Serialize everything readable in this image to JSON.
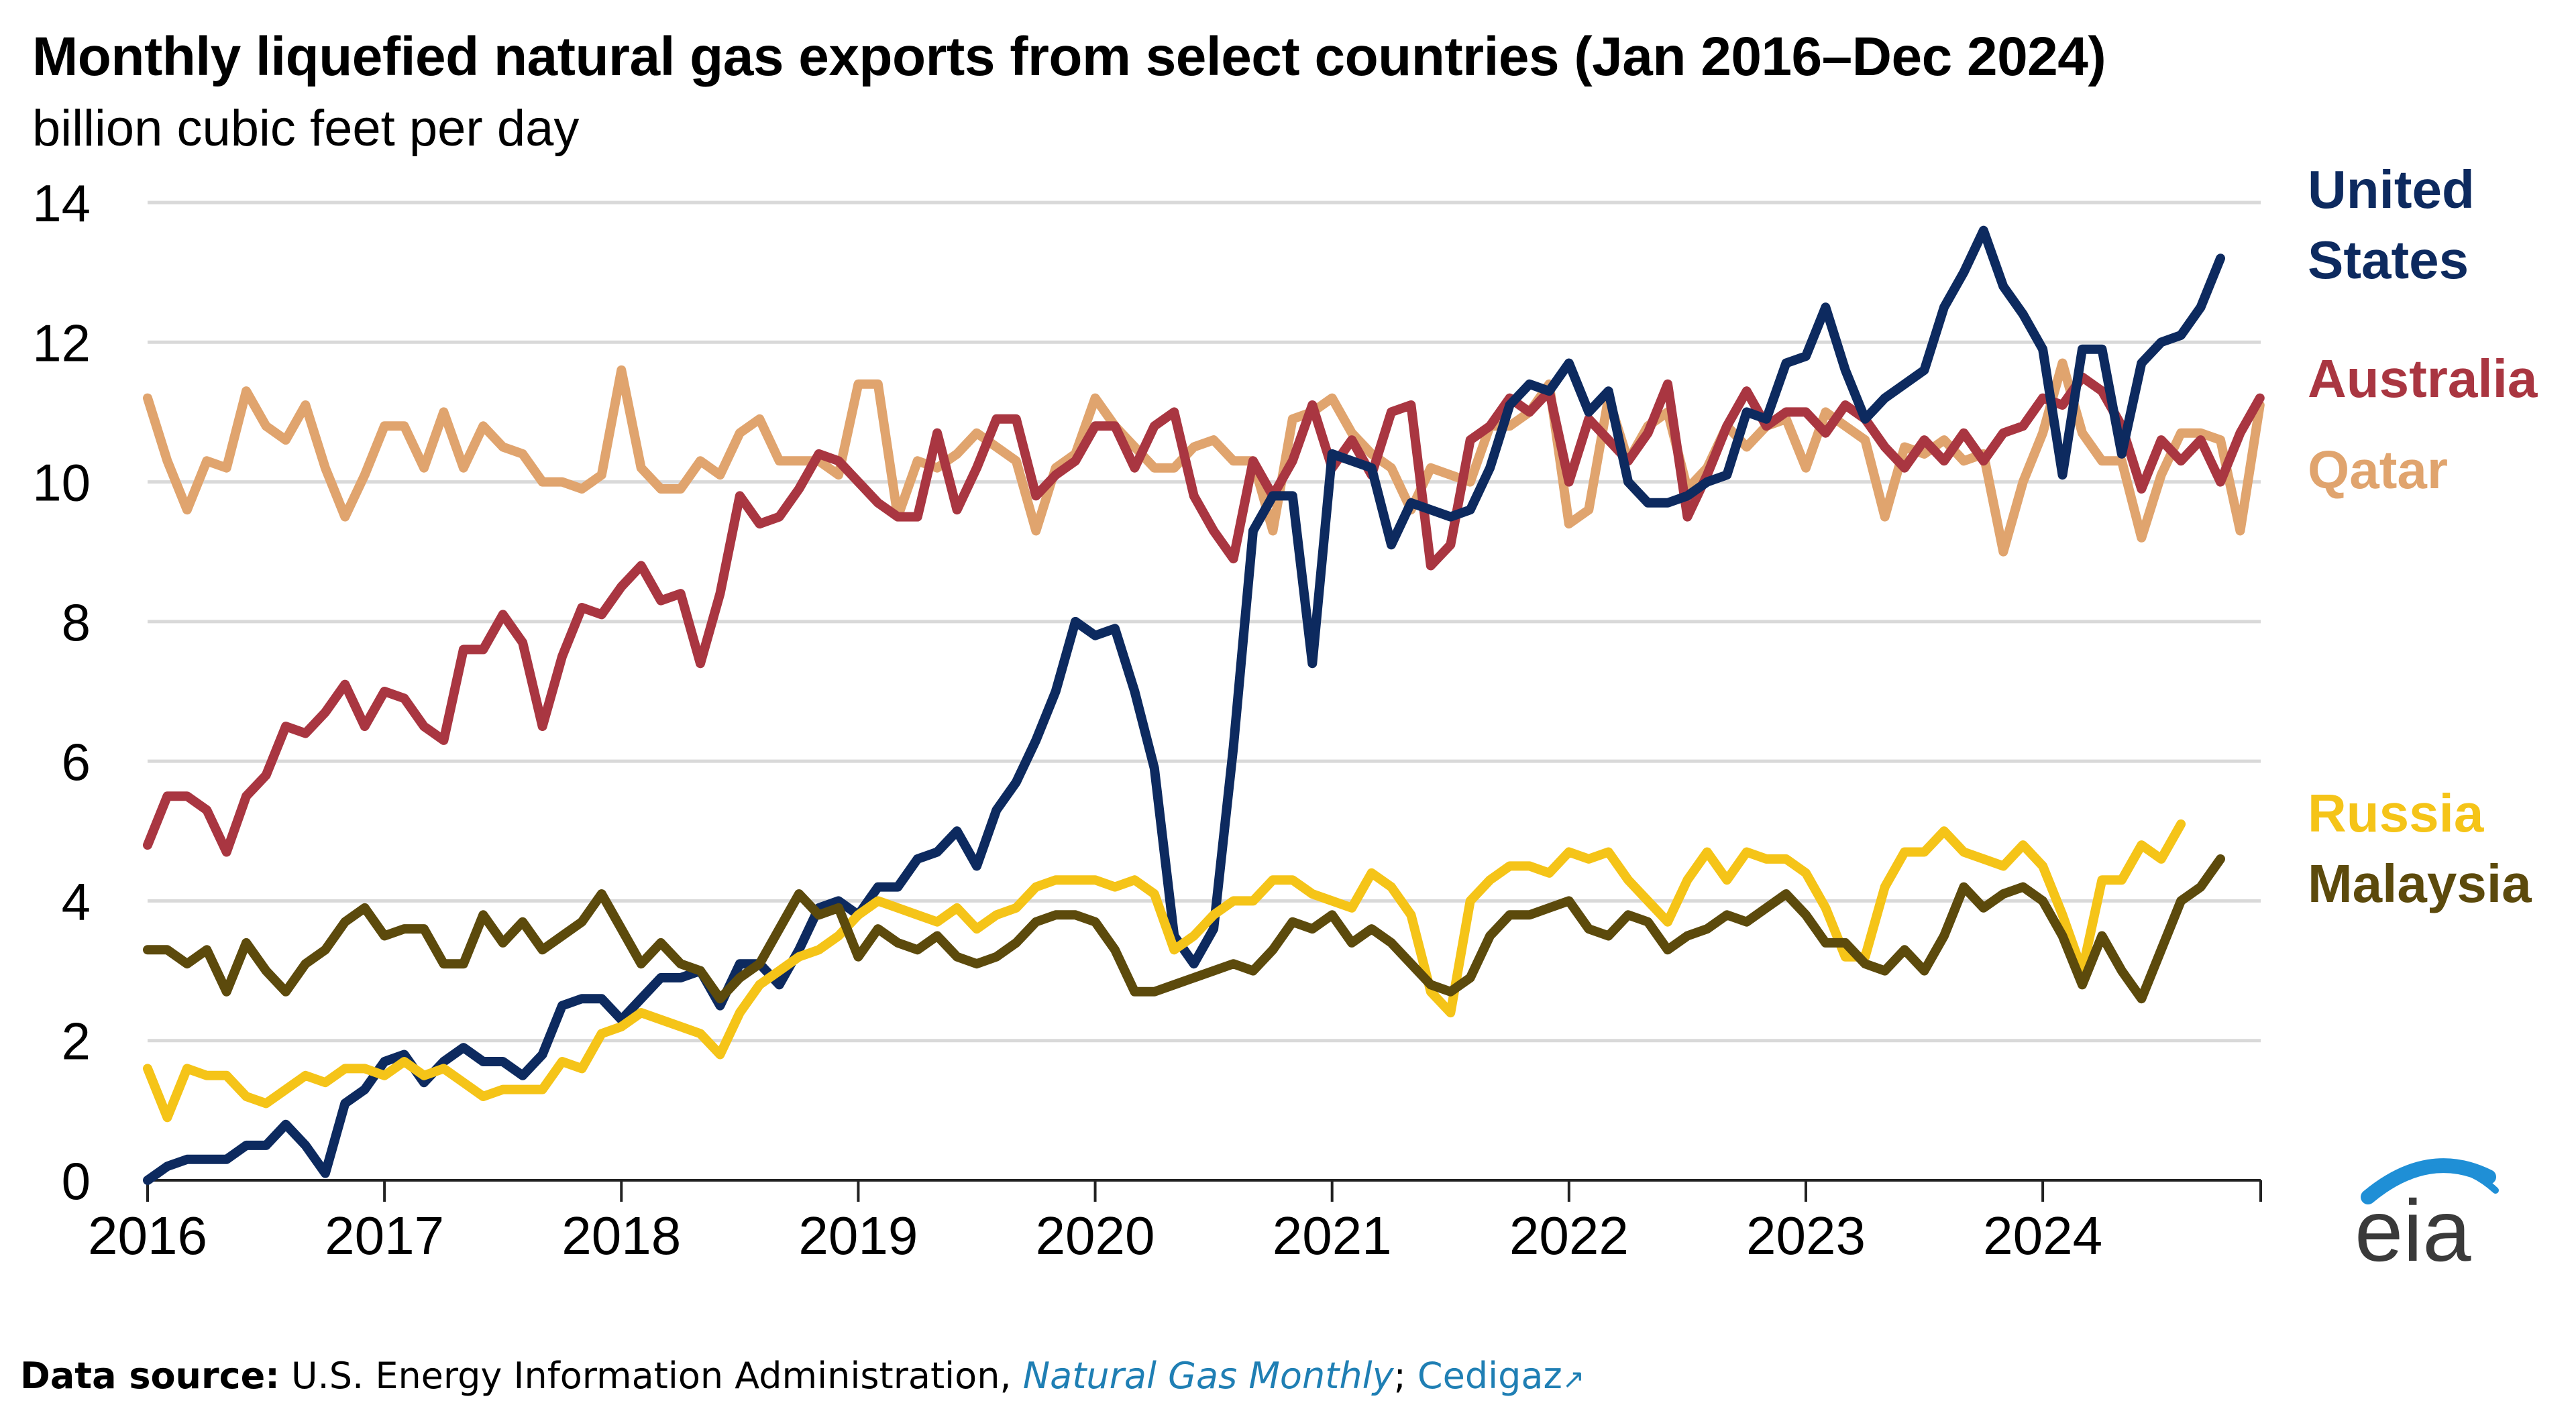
{
  "chart_data": {
    "type": "line",
    "title": "Monthly liquefied natural gas exports from select countries (Jan 2016–Dec 2024)",
    "subtitle": "billion cubic feet per day",
    "xlabel": "",
    "ylabel": "billion cubic feet per day",
    "xlim": [
      2016,
      2024.92
    ],
    "ylim": [
      0,
      14
    ],
    "yticks": [
      0,
      2,
      4,
      6,
      8,
      10,
      12,
      14
    ],
    "xticks": [
      2016,
      2017,
      2018,
      2019,
      2020,
      2021,
      2022,
      2023,
      2024
    ],
    "grid": true,
    "series_start_year": 2016,
    "series": [
      {
        "name": "Qatar",
        "label": "Qatar",
        "color": "#e0a46e",
        "values": [
          11.2,
          10.3,
          9.6,
          10.3,
          10.2,
          11.3,
          10.8,
          10.6,
          11.1,
          10.2,
          9.5,
          10.1,
          10.8,
          10.8,
          10.2,
          11.0,
          10.2,
          10.8,
          10.5,
          10.4,
          10.0,
          10.0,
          9.9,
          10.1,
          11.6,
          10.2,
          9.9,
          9.9,
          10.3,
          10.1,
          10.7,
          10.9,
          10.3,
          10.3,
          10.3,
          10.1,
          11.4,
          11.4,
          9.5,
          10.3,
          10.2,
          10.4,
          10.7,
          10.5,
          10.3,
          9.3,
          10.2,
          10.4,
          11.2,
          10.8,
          10.5,
          10.2,
          10.2,
          10.5,
          10.6,
          10.3,
          10.3,
          9.3,
          10.9,
          11.0,
          11.2,
          10.7,
          10.4,
          10.2,
          9.6,
          10.2,
          10.1,
          10.0,
          10.8,
          10.8,
          11.0,
          11.4,
          9.4,
          9.6,
          11.2,
          10.3,
          10.8,
          11.0,
          9.9,
          10.2,
          10.8,
          10.5,
          10.8,
          10.9,
          10.2,
          11.0,
          10.8,
          10.6,
          9.5,
          10.5,
          10.4,
          10.6,
          10.3,
          10.4,
          9.0,
          10.0,
          10.7,
          11.7,
          10.7,
          10.3,
          10.3,
          9.2,
          10.1,
          10.7,
          10.7,
          10.6,
          9.3,
          11.1
        ]
      },
      {
        "name": "Australia",
        "label": "Australia",
        "color": "#a93641",
        "values": [
          4.8,
          5.5,
          5.5,
          5.3,
          4.7,
          5.5,
          5.8,
          6.5,
          6.4,
          6.7,
          7.1,
          6.5,
          7.0,
          6.9,
          6.5,
          6.3,
          7.6,
          7.6,
          8.1,
          7.7,
          6.5,
          7.5,
          8.2,
          8.1,
          8.5,
          8.8,
          8.3,
          8.4,
          7.4,
          8.4,
          9.8,
          9.4,
          9.5,
          9.9,
          10.4,
          10.3,
          10.0,
          9.7,
          9.5,
          9.5,
          10.7,
          9.6,
          10.2,
          10.9,
          10.9,
          9.8,
          10.1,
          10.3,
          10.8,
          10.8,
          10.2,
          10.8,
          11.0,
          9.8,
          9.3,
          8.9,
          10.3,
          9.8,
          10.3,
          11.1,
          10.2,
          10.6,
          10.1,
          11.0,
          11.1,
          8.8,
          9.1,
          10.6,
          10.8,
          11.2,
          11.0,
          11.3,
          10.0,
          10.9,
          10.6,
          10.3,
          10.7,
          11.4,
          9.5,
          10.1,
          10.8,
          11.3,
          10.8,
          11.0,
          11.0,
          10.7,
          11.1,
          10.9,
          10.5,
          10.2,
          10.6,
          10.3,
          10.7,
          10.3,
          10.7,
          10.8,
          11.2,
          11.1,
          11.5,
          11.3,
          10.8,
          9.9,
          10.6,
          10.3,
          10.6,
          10.0,
          10.7,
          11.2
        ]
      },
      {
        "name": "United States",
        "label": "United States",
        "color": "#0d2a5f",
        "values": [
          0.0,
          0.2,
          0.3,
          0.3,
          0.3,
          0.5,
          0.5,
          0.8,
          0.5,
          0.1,
          1.1,
          1.3,
          1.7,
          1.8,
          1.4,
          1.7,
          1.9,
          1.7,
          1.7,
          1.5,
          1.8,
          2.5,
          2.6,
          2.6,
          2.3,
          2.6,
          2.9,
          2.9,
          3.0,
          2.5,
          3.1,
          3.1,
          2.8,
          3.3,
          3.9,
          4.0,
          3.8,
          4.2,
          4.2,
          4.6,
          4.7,
          5.0,
          4.5,
          5.3,
          5.7,
          6.3,
          7.0,
          8.0,
          7.8,
          7.9,
          7.0,
          5.9,
          3.5,
          3.1,
          3.6,
          6.2,
          9.3,
          9.8,
          9.8,
          7.4,
          10.4,
          10.3,
          10.2,
          9.1,
          9.7,
          9.6,
          9.5,
          9.6,
          10.2,
          11.1,
          11.4,
          11.3,
          11.7,
          11.0,
          11.3,
          10.0,
          9.7,
          9.7,
          9.8,
          10.0,
          10.1,
          11.0,
          10.9,
          11.7,
          11.8,
          12.5,
          11.6,
          10.9,
          11.2,
          11.4,
          11.6,
          12.5,
          13.0,
          13.6,
          12.8,
          12.4,
          11.9,
          10.1,
          11.9,
          11.9,
          10.4,
          11.7,
          12.0,
          12.1,
          12.5,
          13.2
        ]
      },
      {
        "name": "Russia",
        "label": "Russia",
        "color": "#f5c418",
        "values": [
          1.6,
          0.9,
          1.6,
          1.5,
          1.5,
          1.2,
          1.1,
          1.3,
          1.5,
          1.4,
          1.6,
          1.6,
          1.5,
          1.7,
          1.5,
          1.6,
          1.4,
          1.2,
          1.3,
          1.3,
          1.3,
          1.7,
          1.6,
          2.1,
          2.2,
          2.4,
          2.3,
          2.2,
          2.1,
          1.8,
          2.4,
          2.8,
          3.0,
          3.2,
          3.3,
          3.5,
          3.8,
          4.0,
          3.9,
          3.8,
          3.7,
          3.9,
          3.6,
          3.8,
          3.9,
          4.2,
          4.3,
          4.3,
          4.3,
          4.2,
          4.3,
          4.1,
          3.3,
          3.5,
          3.8,
          4.0,
          4.0,
          4.3,
          4.3,
          4.1,
          4.0,
          3.9,
          4.4,
          4.2,
          3.8,
          2.7,
          2.4,
          4.0,
          4.3,
          4.5,
          4.5,
          4.4,
          4.7,
          4.6,
          4.7,
          4.3,
          4.0,
          3.7,
          4.3,
          4.7,
          4.3,
          4.7,
          4.6,
          4.6,
          4.4,
          3.9,
          3.2,
          3.2,
          4.2,
          4.7,
          4.7,
          5.0,
          4.7,
          4.6,
          4.5,
          4.8,
          4.5,
          3.8,
          3.0,
          4.3,
          4.3,
          4.8,
          4.6,
          5.1
        ]
      },
      {
        "name": "Malaysia",
        "label": "Malaysia",
        "color": "#5c4a0c",
        "values": [
          3.3,
          3.3,
          3.1,
          3.3,
          2.7,
          3.4,
          3.0,
          2.7,
          3.1,
          3.3,
          3.7,
          3.9,
          3.5,
          3.6,
          3.6,
          3.1,
          3.1,
          3.8,
          3.4,
          3.7,
          3.3,
          3.5,
          3.7,
          4.1,
          3.6,
          3.1,
          3.4,
          3.1,
          3.0,
          2.6,
          2.9,
          3.1,
          3.6,
          4.1,
          3.8,
          3.9,
          3.2,
          3.6,
          3.4,
          3.3,
          3.5,
          3.2,
          3.1,
          3.2,
          3.4,
          3.7,
          3.8,
          3.8,
          3.7,
          3.3,
          2.7,
          2.7,
          2.8,
          2.9,
          3.0,
          3.1,
          3.0,
          3.3,
          3.7,
          3.6,
          3.8,
          3.4,
          3.6,
          3.4,
          3.1,
          2.8,
          2.7,
          2.9,
          3.5,
          3.8,
          3.8,
          3.9,
          4.0,
          3.6,
          3.5,
          3.8,
          3.7,
          3.3,
          3.5,
          3.6,
          3.8,
          3.7,
          3.9,
          4.1,
          3.8,
          3.4,
          3.4,
          3.1,
          3.0,
          3.3,
          3.0,
          3.5,
          4.2,
          3.9,
          4.1,
          4.2,
          4.0,
          3.5,
          2.8,
          3.5,
          3.0,
          2.6,
          3.3,
          4.0,
          4.2,
          4.6
        ]
      }
    ],
    "labels": {
      "us_line1": "United",
      "us_line2": "States",
      "australia": "Australia",
      "qatar": "Qatar",
      "russia": "Russia",
      "malaysia": "Malaysia"
    }
  },
  "footer": {
    "label": "Data source:",
    "text1": " U.S. Energy Information Administration, ",
    "link1": "Natural Gas Monthly",
    "sep": "; ",
    "link2": "Cedigaz",
    "ext_icon": "↗"
  },
  "logo": {
    "text": "eia",
    "icon": "eia-logo-icon"
  }
}
